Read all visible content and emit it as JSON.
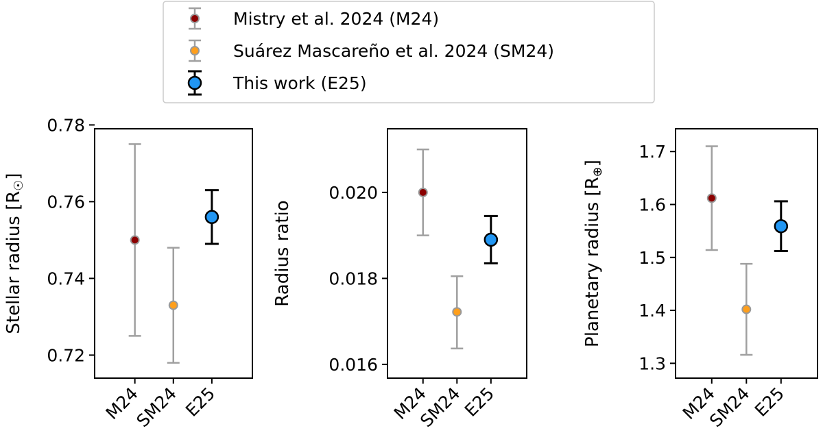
{
  "legend": {
    "placement": "top-center",
    "entries": [
      {
        "label": "Mistry et al. 2024 (M24)",
        "marker_color": "#8b0000",
        "bar_color": "#a0a0a0",
        "size": "small"
      },
      {
        "label": "Suárez Mascareño et al. 2024 (SM24)",
        "marker_color": "#ff9f1c",
        "bar_color": "#a0a0a0",
        "size": "small"
      },
      {
        "label": "This work (E25)",
        "marker_color": "#2196f3",
        "bar_color": "#000000",
        "size": "large"
      }
    ]
  },
  "chart_data": [
    {
      "type": "scatter",
      "categories": [
        "M24",
        "SM24",
        "E25"
      ],
      "ylabel_main": "Stellar radius [R",
      "ylabel_symbol": "☉",
      "ylabel_close": "]",
      "ylim": [
        0.714,
        0.779
      ],
      "yticks": [
        0.72,
        0.74,
        0.76,
        0.78
      ],
      "ytick_labels": [
        "0.72",
        "0.74",
        "0.76",
        "0.78"
      ],
      "points": [
        {
          "category": "M24",
          "value": 0.75,
          "err_low": 0.725,
          "err_high": 0.775
        },
        {
          "category": "SM24",
          "value": 0.733,
          "err_low": 0.718,
          "err_high": 0.748
        },
        {
          "category": "E25",
          "value": 0.756,
          "err_low": 0.749,
          "err_high": 0.763
        }
      ]
    },
    {
      "type": "scatter",
      "categories": [
        "M24",
        "SM24",
        "E25"
      ],
      "ylabel_main": "Radius ratio",
      "ylabel_symbol": "",
      "ylabel_close": "",
      "ylim": [
        0.01568,
        0.02148
      ],
      "yticks": [
        0.016,
        0.018,
        0.02
      ],
      "ytick_labels": [
        "0.016",
        "0.018",
        "0.020"
      ],
      "points": [
        {
          "category": "M24",
          "value": 0.02,
          "err_low": 0.019,
          "err_high": 0.021
        },
        {
          "category": "SM24",
          "value": 0.01722,
          "err_low": 0.01637,
          "err_high": 0.01805
        },
        {
          "category": "E25",
          "value": 0.0189,
          "err_low": 0.01835,
          "err_high": 0.01945
        }
      ]
    },
    {
      "type": "scatter",
      "categories": [
        "M24",
        "SM24",
        "E25"
      ],
      "ylabel_main": "Planetary radius [R",
      "ylabel_symbol": "⊕",
      "ylabel_close": "]",
      "ylim": [
        1.272,
        1.743
      ],
      "yticks": [
        1.3,
        1.4,
        1.5,
        1.6,
        1.7
      ],
      "ytick_labels": [
        "1.3",
        "1.4",
        "1.5",
        "1.6",
        "1.7"
      ],
      "points": [
        {
          "category": "M24",
          "value": 1.612,
          "err_low": 1.514,
          "err_high": 1.71
        },
        {
          "category": "SM24",
          "value": 1.402,
          "err_low": 1.316,
          "err_high": 1.488
        },
        {
          "category": "E25",
          "value": 1.559,
          "err_low": 1.512,
          "err_high": 1.606
        }
      ]
    }
  ]
}
